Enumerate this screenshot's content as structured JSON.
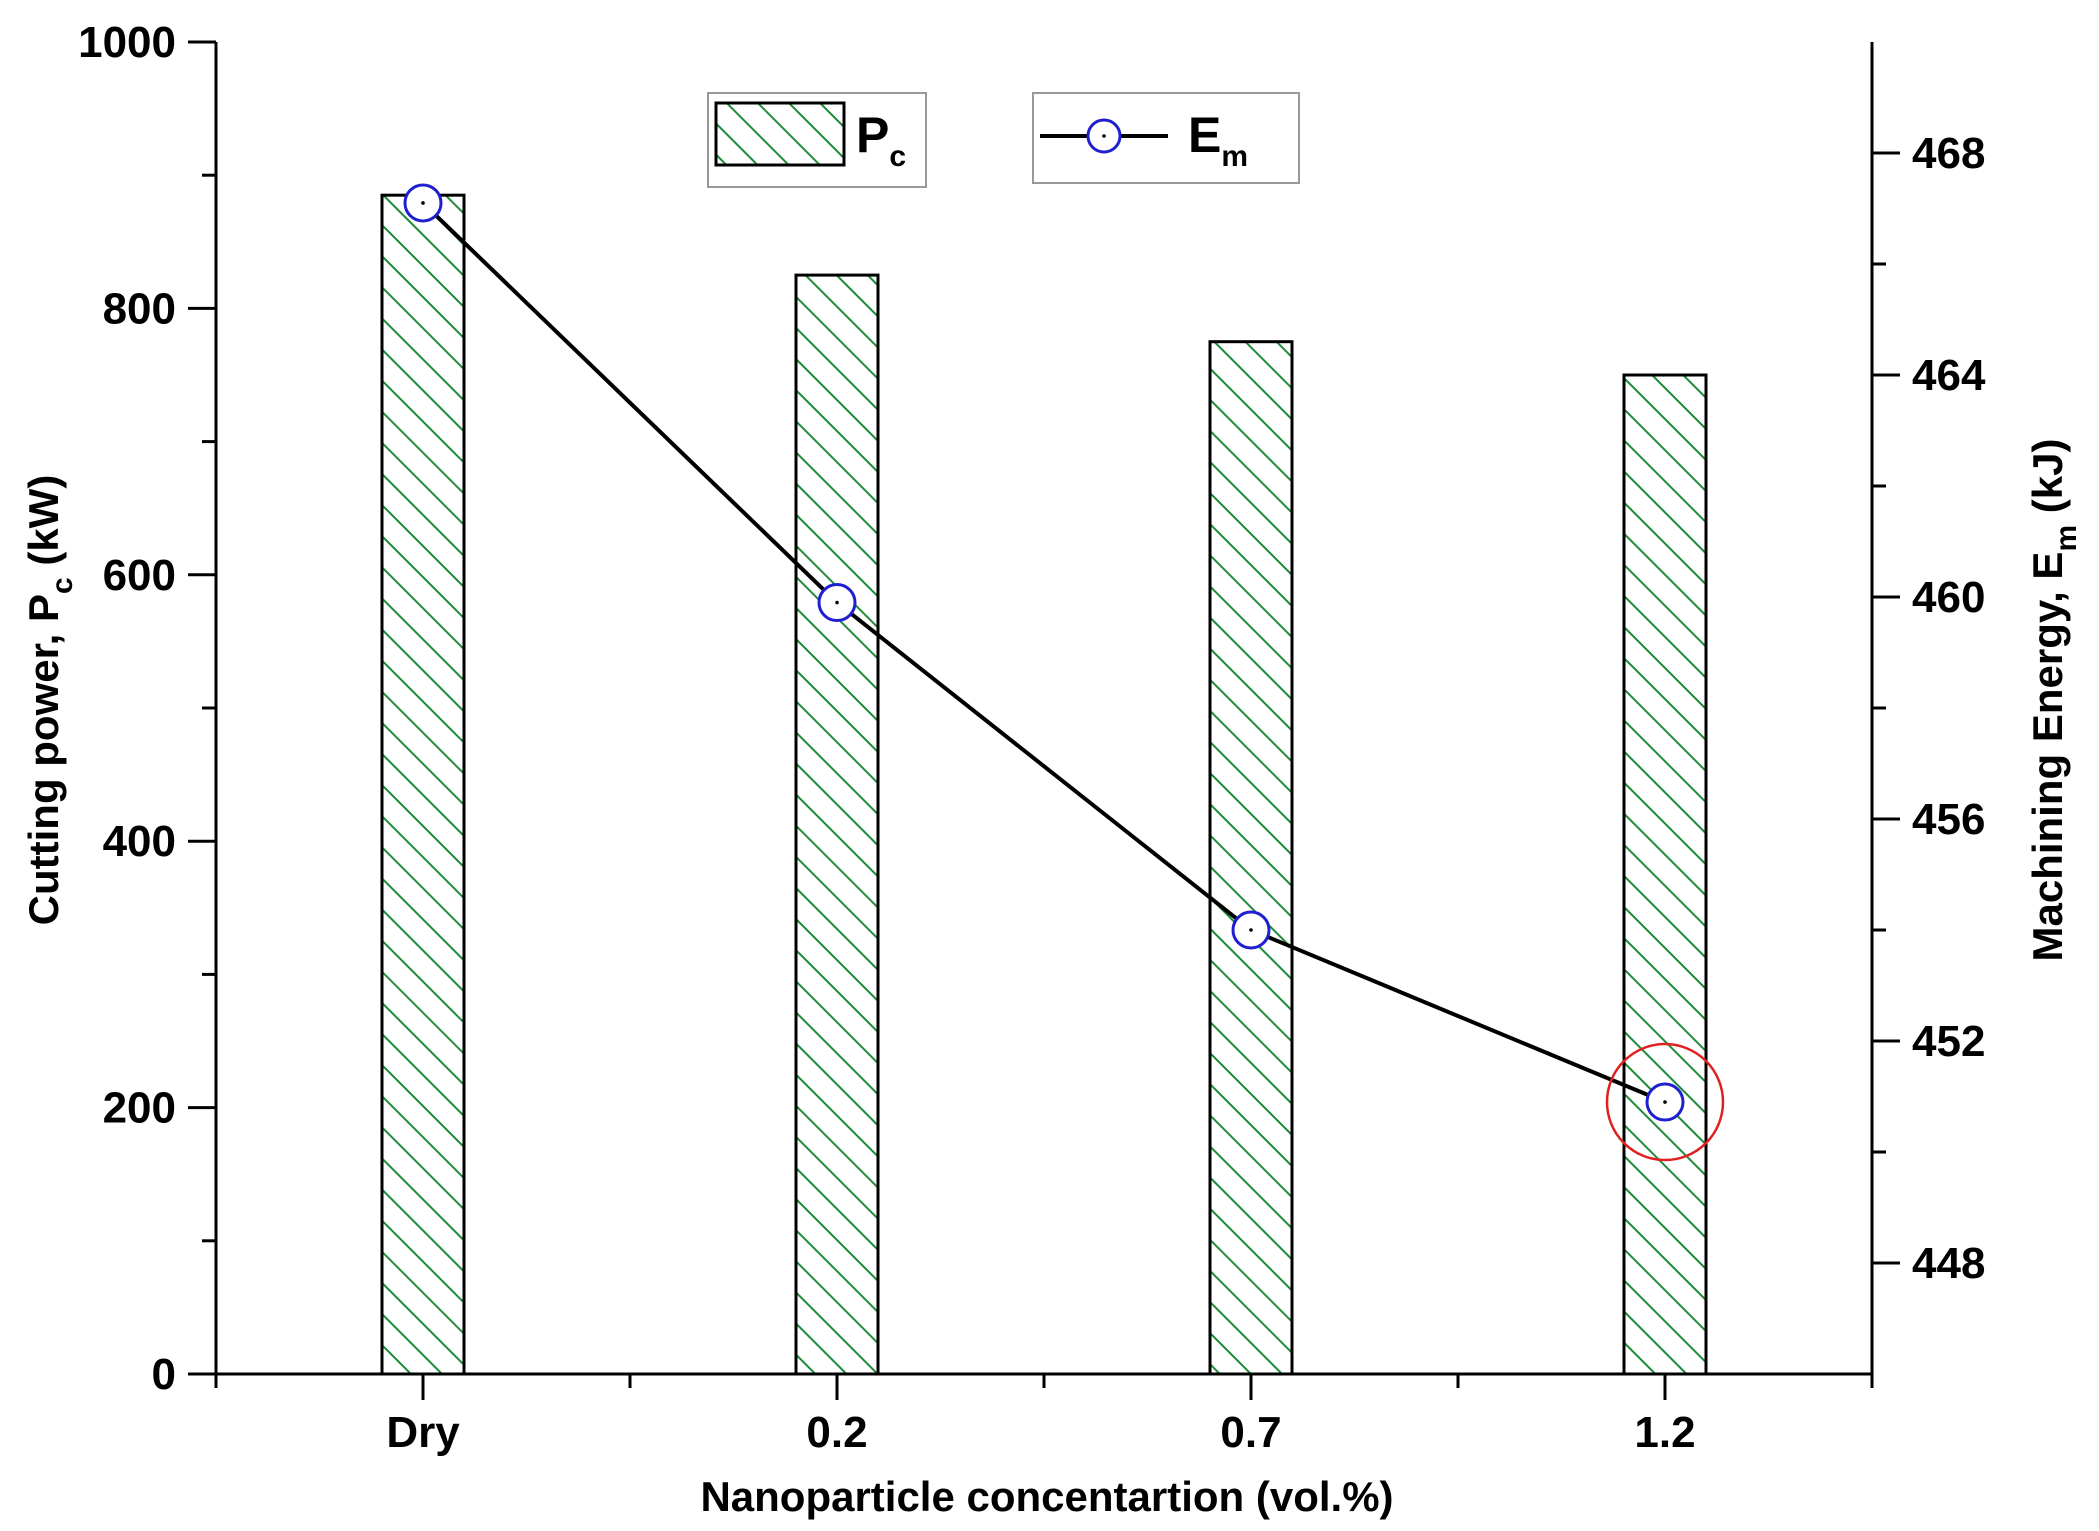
{
  "chart_data": {
    "type": "bar+line",
    "categories": [
      "Dry",
      "0.2",
      "0.7",
      "1.2"
    ],
    "xlabel": "Nanoparticle concentartion (vol.%)",
    "series": [
      {
        "name": "Pc",
        "name_main": "P",
        "name_sub": "c",
        "type": "bar",
        "axis": "left",
        "pattern": "diagonal-hatch",
        "color": "#1e8c3a",
        "values": [
          885,
          825,
          775,
          750
        ]
      },
      {
        "name": "Em",
        "name_main": "E",
        "name_sub": "m",
        "type": "line",
        "axis": "right",
        "marker": "open-circle",
        "marker_color": "#1f1fd0",
        "line_color": "#000000",
        "values": [
          467.1,
          459.9,
          454.0,
          450.9
        ]
      }
    ],
    "left_axis": {
      "label_main": "Cutting power, P",
      "label_sub": "c",
      "label_tail": " (kW)",
      "ylim": [
        0,
        1000
      ],
      "ticks": [
        0,
        200,
        400,
        600,
        800,
        1000
      ]
    },
    "right_axis": {
      "label_main": "Machining Energy, E",
      "label_sub": "m",
      "label_tail": " (kJ)",
      "ylim": [
        446,
        470
      ],
      "ticks": [
        448,
        452,
        456,
        460,
        464,
        468
      ]
    },
    "annotation": {
      "type": "circle-highlight",
      "target": "Em at 1.2",
      "color": "#e02020"
    },
    "legend": {
      "placement": "top-center"
    }
  }
}
